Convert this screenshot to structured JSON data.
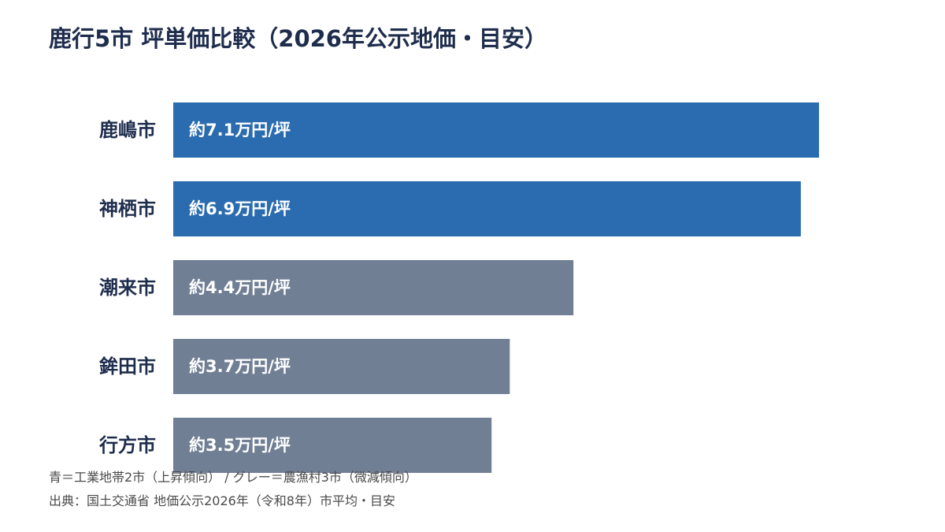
{
  "chart_data": {
    "type": "bar",
    "orientation": "horizontal",
    "title": "鹿行5市 坪単価比較（2026年公示地価・目安）",
    "categories": [
      "鹿嶋市",
      "神栖市",
      "潮来市",
      "鉾田市",
      "行方市"
    ],
    "values": [
      7.1,
      6.9,
      4.4,
      3.7,
      3.5
    ],
    "value_labels": [
      "約7.1万円/坪",
      "約6.9万円/坪",
      "約4.4万円/坪",
      "約3.7万円/坪",
      "約3.5万円/坪"
    ],
    "bar_colors": [
      "#2b6cb0",
      "#2b6cb0",
      "#717f95",
      "#717f95",
      "#717f95"
    ],
    "xlim": [
      0,
      7.1
    ],
    "grid": false,
    "legend": "none"
  },
  "notes": {
    "legend_note": "青＝工業地帯2市（上昇傾向） / グレー＝農漁村3市（微減傾向）",
    "source": "出典：国土交通省 地価公示2026年（令和8年）市平均・目安"
  }
}
